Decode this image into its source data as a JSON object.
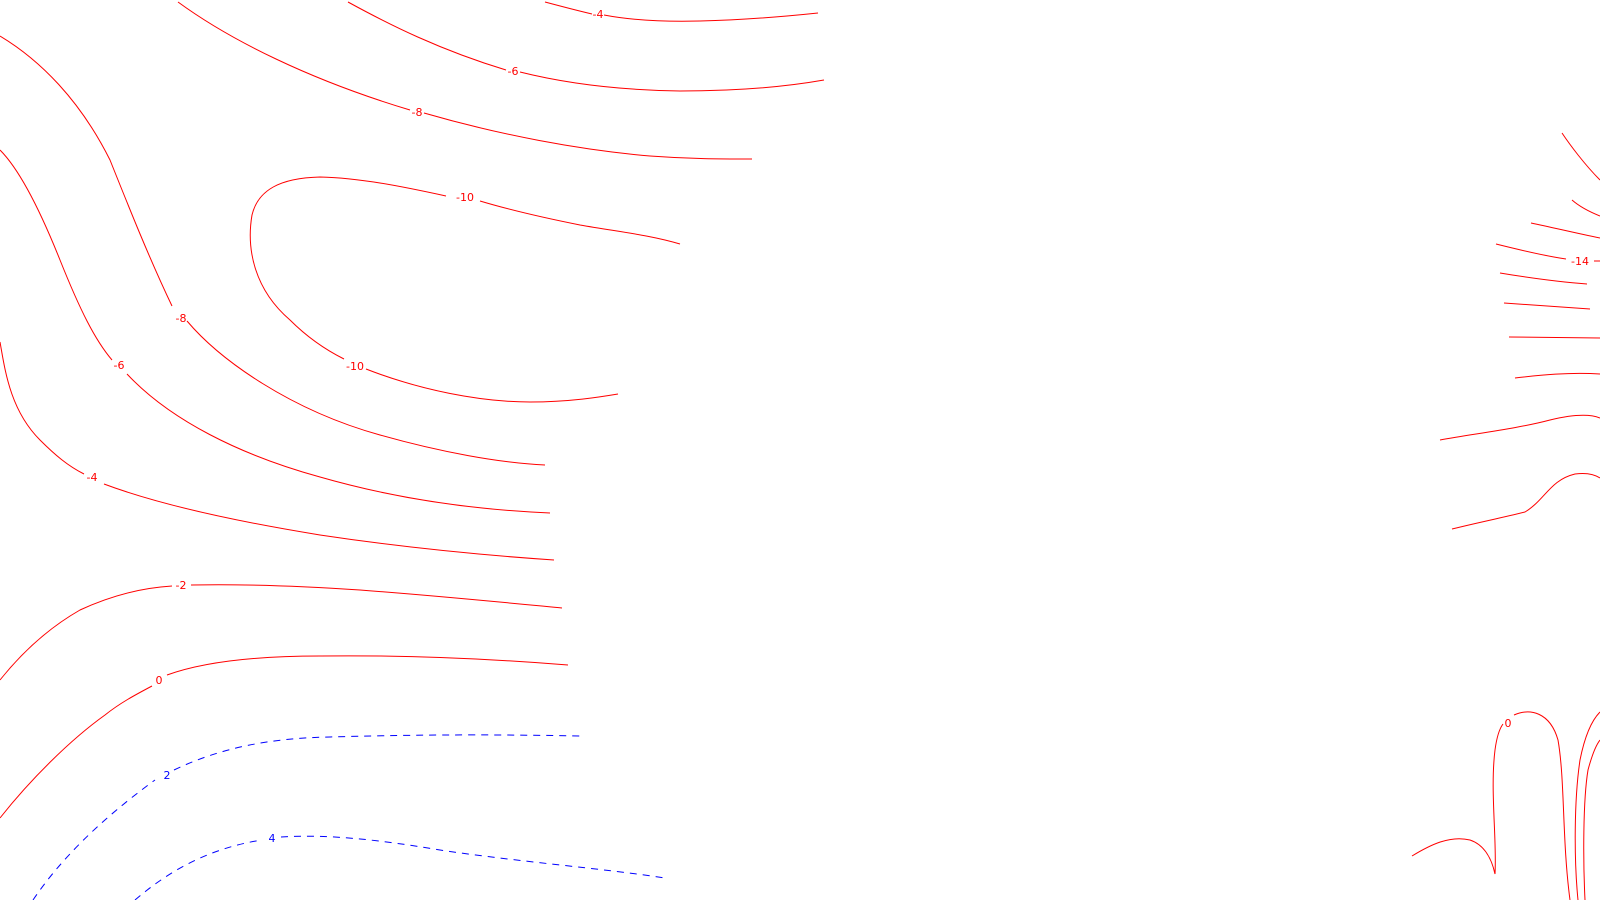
{
  "colors": {
    "negative": "#ff0000",
    "positive": "#0000ff",
    "background": "#ffffff"
  },
  "contours": [
    {
      "id": "neg4-top",
      "value": -4,
      "label": "-4",
      "style": "solid"
    },
    {
      "id": "neg6-top",
      "value": -6,
      "label": "-6",
      "style": "solid"
    },
    {
      "id": "neg8-top",
      "value": -8,
      "label": "-8",
      "style": "solid"
    },
    {
      "id": "neg10",
      "value": -10,
      "label": "-10",
      "style": "solid"
    },
    {
      "id": "neg8-left",
      "value": -8,
      "label": "-8",
      "style": "solid"
    },
    {
      "id": "neg6-left",
      "value": -6,
      "label": "-6",
      "style": "solid"
    },
    {
      "id": "neg4-left",
      "value": -4,
      "label": "-4",
      "style": "solid"
    },
    {
      "id": "neg2",
      "value": -2,
      "label": "-2",
      "style": "solid"
    },
    {
      "id": "zero-left",
      "value": 0,
      "label": "0",
      "style": "solid"
    },
    {
      "id": "pos2",
      "value": 2,
      "label": "2",
      "style": "dashed"
    },
    {
      "id": "pos4",
      "value": 4,
      "label": "4",
      "style": "dashed"
    },
    {
      "id": "neg14-right",
      "value": -14,
      "label": "-14",
      "style": "solid"
    },
    {
      "id": "zero-right",
      "value": 0,
      "label": "0",
      "style": "solid"
    }
  ]
}
